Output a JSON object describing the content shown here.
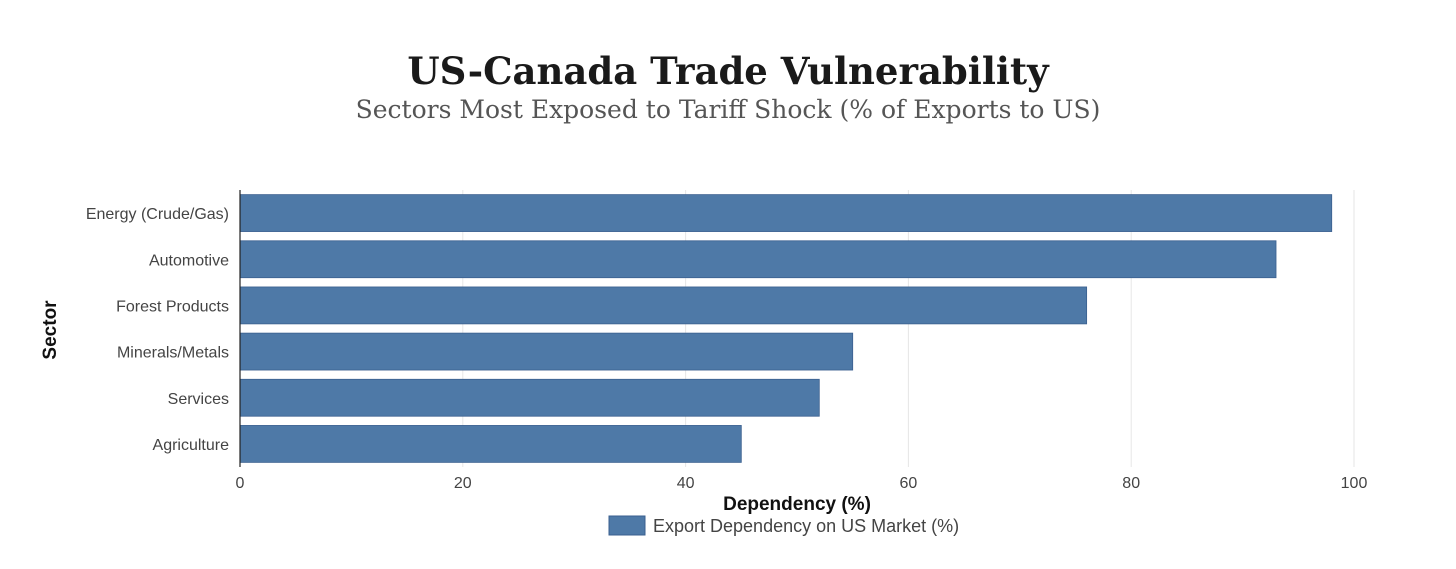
{
  "chart_data": {
    "type": "bar",
    "orientation": "horizontal",
    "title": "US-Canada Trade Vulnerability",
    "subtitle": "Sectors Most Exposed to Tariff Shock (% of Exports to US)",
    "xlabel": "Dependency (%)",
    "ylabel": "Sector",
    "xlim": [
      0,
      100
    ],
    "xticks": [
      0,
      20,
      40,
      60,
      80,
      100
    ],
    "grid": true,
    "legend_position": "bottom-center",
    "categories": [
      "Energy (Crude/Gas)",
      "Automotive",
      "Forest Products",
      "Minerals/Metals",
      "Services",
      "Agriculture"
    ],
    "series": [
      {
        "name": "Export Dependency on US Market (%)",
        "values": [
          98,
          93,
          76,
          55,
          52,
          45
        ],
        "color": "#4e79a7"
      }
    ]
  }
}
